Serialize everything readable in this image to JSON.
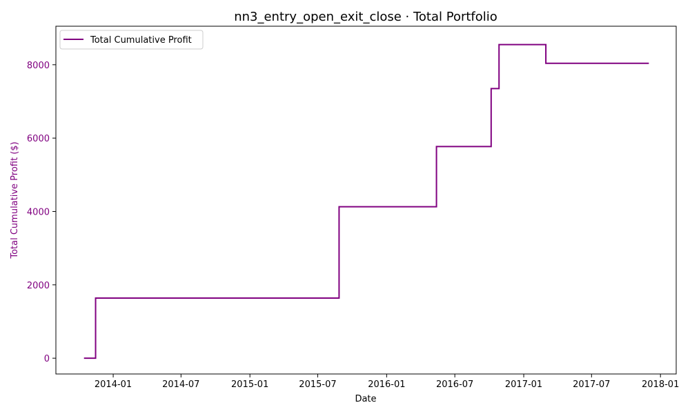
{
  "chart_data": {
    "type": "line",
    "title": "nn3_entry_open_exit_close · Total Portfolio",
    "xlabel": "Date",
    "ylabel": "Total Cumulative Profit ($)",
    "xlim": [
      "2013-08-01",
      "2018-02-12"
    ],
    "ylim": [
      -430,
      9050
    ],
    "xticks": [
      "2014-01",
      "2014-07",
      "2015-01",
      "2015-07",
      "2016-01",
      "2016-07",
      "2017-01",
      "2017-07",
      "2018-01"
    ],
    "yticks": [
      0,
      2000,
      4000,
      6000,
      8000
    ],
    "legend": {
      "position": "top-left"
    },
    "grid": false,
    "colors": {
      "series": "#800080",
      "axis": "#000000"
    },
    "series": [
      {
        "name": "Total Cumulative Profit",
        "step": "post",
        "x": [
          "2013-10-15",
          "2013-11-15",
          "2015-08-27",
          "2016-05-13",
          "2016-10-06",
          "2016-10-27",
          "2017-03-01",
          "2017-12-01"
        ],
        "y": [
          0,
          1640,
          4130,
          5770,
          7350,
          8550,
          8040,
          8040
        ]
      }
    ]
  }
}
